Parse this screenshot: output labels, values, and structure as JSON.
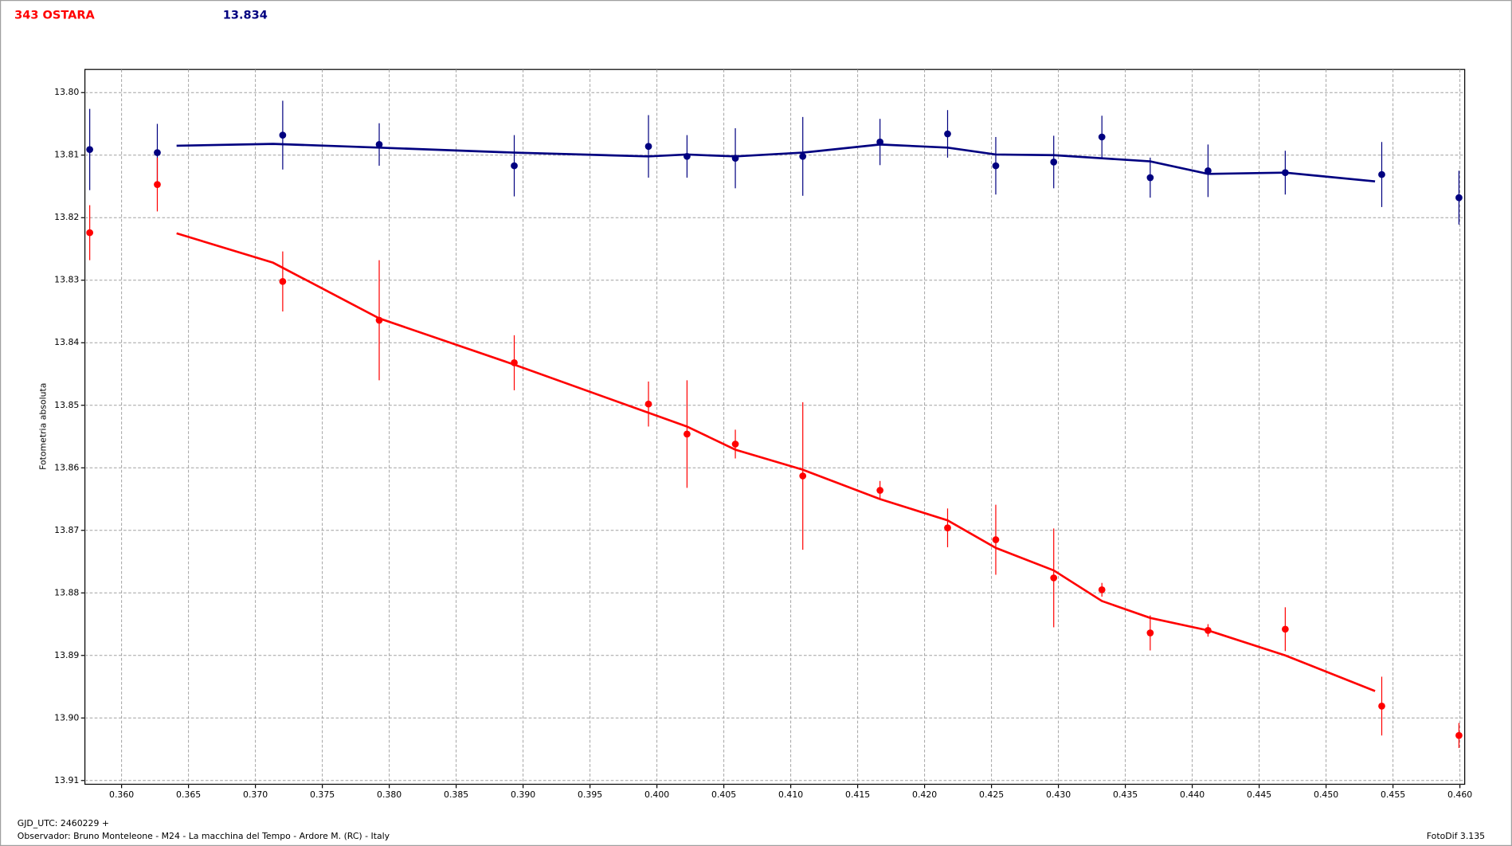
{
  "chart_data": {
    "type": "scatter",
    "title": "343 OSTARA",
    "subtitle": "13.834",
    "ylabel": "Fotometria absoluta",
    "footer_left_1": "GJD_UTC: 2460229 +",
    "footer_left_2": "Observador: Bruno Monteleone - M24 - La macchina del Tempo - Ardore M. (RC) - Italy",
    "footer_right": "FotoDif 3.135",
    "x": [
      0.35762,
      0.36267,
      0.37204,
      0.37925,
      0.38934,
      0.39937,
      0.40225,
      0.40586,
      0.4109,
      0.41667,
      0.42172,
      0.42532,
      0.42965,
      0.43325,
      0.43686,
      0.44118,
      0.44695,
      0.45416,
      0.45993
    ],
    "series": [
      {
        "color": "#000080",
        "values": [
          13.8091,
          13.8096,
          13.8068,
          13.8083,
          13.8117,
          13.8086,
          13.8102,
          13.8105,
          13.8102,
          13.8079,
          13.8066,
          13.8117,
          13.8111,
          13.8071,
          13.8136,
          13.8125,
          13.8128,
          13.8131,
          13.8168
        ],
        "errors": [
          0.0065,
          0.0046,
          0.0055,
          0.0034,
          0.0049,
          0.005,
          0.0034,
          0.0048,
          0.0063,
          0.0037,
          0.0038,
          0.0046,
          0.0042,
          0.0034,
          0.0032,
          0.0042,
          0.0035,
          0.0052,
          0.0043
        ],
        "fit_x": [
          0.36411,
          0.37132,
          0.37925,
          0.38934,
          0.39937,
          0.40225,
          0.40586,
          0.4109,
          0.41667,
          0.42172,
          0.42532,
          0.42965,
          0.43325,
          0.43686,
          0.44118,
          0.44695,
          0.45366
        ],
        "fit_values": [
          13.8085,
          13.8082,
          13.8088,
          13.8096,
          13.8102,
          13.8099,
          13.8102,
          13.8096,
          13.8083,
          13.8088,
          13.8099,
          13.81,
          13.8105,
          13.811,
          13.813,
          13.8128,
          13.8142
        ]
      },
      {
        "color": "#ff0000",
        "values": [
          13.8224,
          13.8147,
          13.8302,
          13.8364,
          13.8432,
          13.8498,
          13.8546,
          13.8562,
          13.8613,
          13.8636,
          13.8696,
          13.8715,
          13.8776,
          13.8795,
          13.8864,
          13.886,
          13.8858,
          13.8981,
          13.9028
        ],
        "errors": [
          0.0044,
          0.0043,
          0.0048,
          0.0096,
          0.0044,
          0.0036,
          0.0086,
          0.0023,
          0.0118,
          0.0015,
          0.0031,
          0.0056,
          0.0079,
          0.0011,
          0.0028,
          0.001,
          0.0035,
          0.0047,
          0.002
        ],
        "fit_x": [
          0.36411,
          0.37132,
          0.37925,
          0.38934,
          0.39937,
          0.40225,
          0.40586,
          0.4109,
          0.41667,
          0.42172,
          0.42532,
          0.42965,
          0.43325,
          0.43686,
          0.44118,
          0.44695,
          0.45366
        ],
        "fit_values": [
          13.8225,
          13.8272,
          13.8361,
          13.8435,
          13.8512,
          13.8534,
          13.8571,
          13.8603,
          13.865,
          13.8684,
          13.8728,
          13.8764,
          13.8813,
          13.884,
          13.886,
          13.89,
          13.8957
        ]
      }
    ],
    "xlim": [
      0.35726,
      0.46036
    ],
    "ylim": [
      13.7963,
      13.9106
    ],
    "y_inverted": true,
    "grid": true,
    "xticks": [
      {
        "value": 0.36,
        "label": "0.360"
      },
      0.365,
      {
        "value": 0.37,
        "label": "0.370"
      },
      0.375,
      {
        "value": 0.38,
        "label": "0.380"
      },
      0.385,
      {
        "value": 0.39,
        "label": "0.390"
      },
      0.395,
      {
        "value": 0.4,
        "label": "0.400"
      },
      0.405,
      {
        "value": 0.41,
        "label": "0.410"
      },
      0.415,
      {
        "value": 0.42,
        "label": "0.420"
      },
      0.425,
      {
        "value": 0.43,
        "label": "0.430"
      },
      0.435,
      {
        "value": 0.44,
        "label": "0.440"
      },
      0.445,
      {
        "value": 0.45,
        "label": "0.450"
      },
      0.455,
      {
        "value": 0.46,
        "label": "0.460"
      }
    ],
    "yticks": [
      {
        "value": 13.8,
        "label": "13.80"
      },
      13.81,
      13.82,
      13.83,
      13.84,
      13.85,
      13.86,
      13.87,
      13.88,
      13.89,
      {
        "value": 13.9,
        "label": "13.90"
      },
      13.91
    ]
  }
}
